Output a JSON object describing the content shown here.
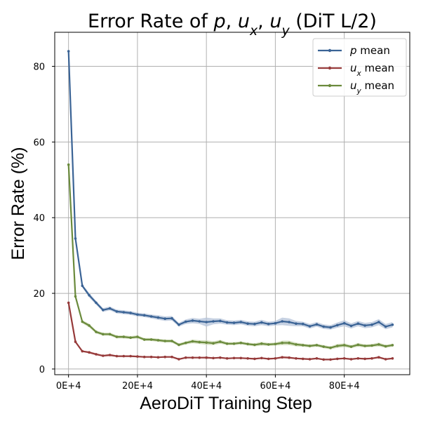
{
  "chart_data": {
    "type": "line",
    "title": "Error Rate of p, u_x, u_y (DiT L/2)",
    "title_parts": [
      {
        "text": "Error Rate of ",
        "italic": false,
        "sub": false
      },
      {
        "text": "p",
        "italic": true,
        "sub": false
      },
      {
        "text": ", ",
        "italic": false,
        "sub": false
      },
      {
        "text": "u",
        "italic": true,
        "sub": false
      },
      {
        "text": "x",
        "italic": true,
        "sub": true
      },
      {
        "text": ", ",
        "italic": false,
        "sub": false
      },
      {
        "text": "u",
        "italic": true,
        "sub": false
      },
      {
        "text": "y",
        "italic": true,
        "sub": true
      },
      {
        "text": " (DiT L/2)",
        "italic": false,
        "sub": false
      }
    ],
    "xlabel": "AeroDiT Training Step",
    "ylabel": "Error Rate (%)",
    "xlim": [
      -4,
      99
    ],
    "ylim": [
      -1.5,
      89
    ],
    "xticks": [
      0,
      20,
      40,
      60,
      80
    ],
    "xtick_labels": [
      "0E+4",
      "20E+4",
      "40E+4",
      "60E+4",
      "80E+4"
    ],
    "yticks": [
      0,
      20,
      40,
      60,
      80
    ],
    "ytick_labels": [
      "0",
      "20",
      "40",
      "60",
      "80"
    ],
    "grid": true,
    "legend_position": "top-right",
    "x": [
      0,
      2,
      4,
      6,
      8,
      10,
      12,
      14,
      16,
      18,
      20,
      22,
      24,
      26,
      28,
      30,
      32,
      34,
      36,
      38,
      40,
      42,
      44,
      46,
      48,
      50,
      52,
      54,
      56,
      58,
      60,
      62,
      64,
      66,
      68,
      70,
      72,
      74,
      76,
      78,
      80,
      82,
      84,
      86,
      88,
      90,
      92,
      94
    ],
    "series": [
      {
        "name": "p mean",
        "label_parts": [
          {
            "text": "p",
            "italic": true,
            "sub": false
          },
          {
            "text": " mean",
            "italic": false,
            "sub": false
          }
        ],
        "color": "#3a6395",
        "band_color": "#b3c1d8",
        "values": [
          84,
          34.5,
          22,
          19.5,
          17.5,
          15.6,
          16,
          15.2,
          15,
          14.8,
          14.4,
          14.2,
          13.9,
          13.6,
          13.3,
          13.4,
          11.7,
          12.5,
          12.8,
          12.6,
          12.4,
          12.6,
          12.7,
          12.3,
          12.2,
          12.4,
          12.0,
          11.9,
          12.3,
          11.9,
          12.1,
          12.6,
          12.4,
          12.0,
          11.9,
          11.3,
          11.8,
          11.2,
          11.0,
          11.6,
          12.1,
          11.4,
          12.0,
          11.5,
          11.7,
          12.4,
          11.2,
          11.7
        ],
        "spread": [
          0,
          0,
          0.4,
          0.6,
          0.5,
          0.5,
          0.5,
          0.5,
          0.5,
          0.5,
          0.5,
          0.5,
          0.5,
          0.6,
          0.6,
          0.6,
          0.5,
          0.6,
          0.7,
          0.7,
          1.2,
          0.8,
          0.7,
          0.6,
          0.6,
          0.6,
          0.6,
          0.6,
          0.7,
          0.6,
          0.6,
          1.0,
          1.0,
          0.7,
          0.6,
          0.6,
          0.6,
          0.6,
          0.6,
          0.7,
          0.8,
          0.7,
          0.7,
          0.7,
          0.7,
          0.8,
          0.7,
          0.7
        ]
      },
      {
        "name": "u_x mean",
        "label_parts": [
          {
            "text": "u",
            "italic": true,
            "sub": false
          },
          {
            "text": "x",
            "italic": true,
            "sub": true
          },
          {
            "text": " mean",
            "italic": false,
            "sub": false
          }
        ],
        "color": "#963a3a",
        "band_color": "#e2b4b4",
        "values": [
          17.5,
          7.2,
          4.7,
          4.4,
          3.9,
          3.5,
          3.7,
          3.4,
          3.4,
          3.4,
          3.3,
          3.2,
          3.2,
          3.1,
          3.2,
          3.2,
          2.6,
          3.0,
          3.0,
          3.0,
          3.0,
          2.9,
          3.0,
          2.8,
          2.9,
          2.9,
          2.8,
          2.7,
          2.9,
          2.7,
          2.8,
          3.1,
          3.0,
          2.8,
          2.7,
          2.6,
          2.8,
          2.5,
          2.5,
          2.7,
          2.8,
          2.6,
          2.8,
          2.7,
          2.8,
          3.1,
          2.6,
          2.8
        ],
        "spread": [
          0,
          0,
          0.2,
          0.3,
          0.3,
          0.2,
          0.3,
          0.2,
          0.2,
          0.2,
          0.2,
          0.2,
          0.2,
          0.2,
          0.2,
          0.2,
          0.2,
          0.2,
          0.2,
          0.2,
          0.3,
          0.2,
          0.2,
          0.2,
          0.2,
          0.2,
          0.2,
          0.2,
          0.2,
          0.2,
          0.2,
          0.3,
          0.3,
          0.2,
          0.2,
          0.2,
          0.2,
          0.2,
          0.2,
          0.2,
          0.2,
          0.2,
          0.2,
          0.2,
          0.2,
          0.3,
          0.2,
          0.2
        ]
      },
      {
        "name": "u_y mean",
        "label_parts": [
          {
            "text": "u",
            "italic": true,
            "sub": false
          },
          {
            "text": "y",
            "italic": true,
            "sub": true
          },
          {
            "text": " mean",
            "italic": false,
            "sub": false
          }
        ],
        "color": "#6a8a3c",
        "band_color": "#c8d6ad",
        "values": [
          54,
          19.2,
          12.5,
          11.5,
          9.8,
          9.2,
          9.2,
          8.5,
          8.5,
          8.3,
          8.5,
          7.8,
          7.8,
          7.6,
          7.4,
          7.4,
          6.4,
          6.9,
          7.3,
          7.1,
          7.0,
          6.8,
          7.2,
          6.7,
          6.7,
          6.9,
          6.6,
          6.4,
          6.7,
          6.5,
          6.6,
          6.9,
          6.9,
          6.5,
          6.3,
          6.1,
          6.3,
          5.9,
          5.6,
          6.1,
          6.3,
          5.9,
          6.4,
          6.1,
          6.2,
          6.5,
          6.0,
          6.3
        ],
        "spread": [
          0,
          0,
          0.4,
          0.5,
          0.4,
          0.4,
          0.4,
          0.4,
          0.4,
          0.4,
          0.4,
          0.4,
          0.4,
          0.4,
          0.4,
          0.4,
          0.4,
          0.4,
          0.5,
          0.5,
          0.6,
          0.5,
          0.5,
          0.4,
          0.4,
          0.4,
          0.4,
          0.4,
          0.5,
          0.4,
          0.4,
          0.6,
          0.6,
          0.5,
          0.4,
          0.4,
          0.4,
          0.4,
          0.4,
          0.5,
          0.5,
          0.4,
          0.5,
          0.4,
          0.4,
          0.5,
          0.4,
          0.4
        ]
      }
    ]
  }
}
